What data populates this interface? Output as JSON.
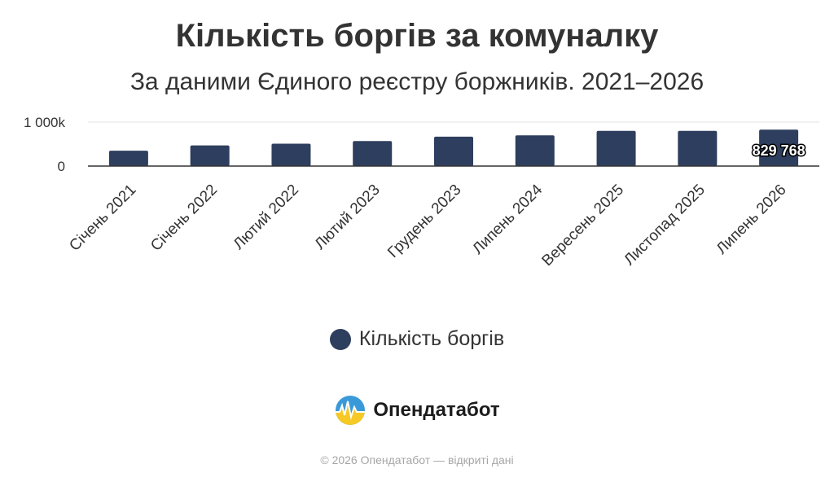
{
  "chart_data": {
    "type": "bar",
    "title": "Кількість боргів за комуналку",
    "subtitle": "За даними Єдиного реєстру боржників. 2021–2026",
    "categories": [
      "Січень 2021",
      "Січень 2022",
      "Лютий 2022",
      "Лютий 2023",
      "Грудень 2023",
      "Липень 2024",
      "Вересень 2025",
      "Листопад 2025",
      "Липень 2026"
    ],
    "series": [
      {
        "name": "Кількість боргів",
        "color": "#2e3e5e",
        "values": [
          350000,
          470000,
          510000,
          570000,
          670000,
          700000,
          800000,
          800000,
          829768
        ]
      }
    ],
    "data_labels": [
      {
        "index": 8,
        "text": "829 768"
      }
    ],
    "yaxis_ticks": [
      {
        "value": 0,
        "label": "0"
      },
      {
        "value": 1000000,
        "label": "1 000k"
      }
    ],
    "ylim": [
      0,
      1000000
    ],
    "grid": true,
    "legend_position": "bottom"
  },
  "brand": {
    "name": "Опендатабот",
    "icon": "opendatabot-logo-icon"
  },
  "footer": {
    "text": "© 2026 Опендатабот — відкриті дані"
  }
}
